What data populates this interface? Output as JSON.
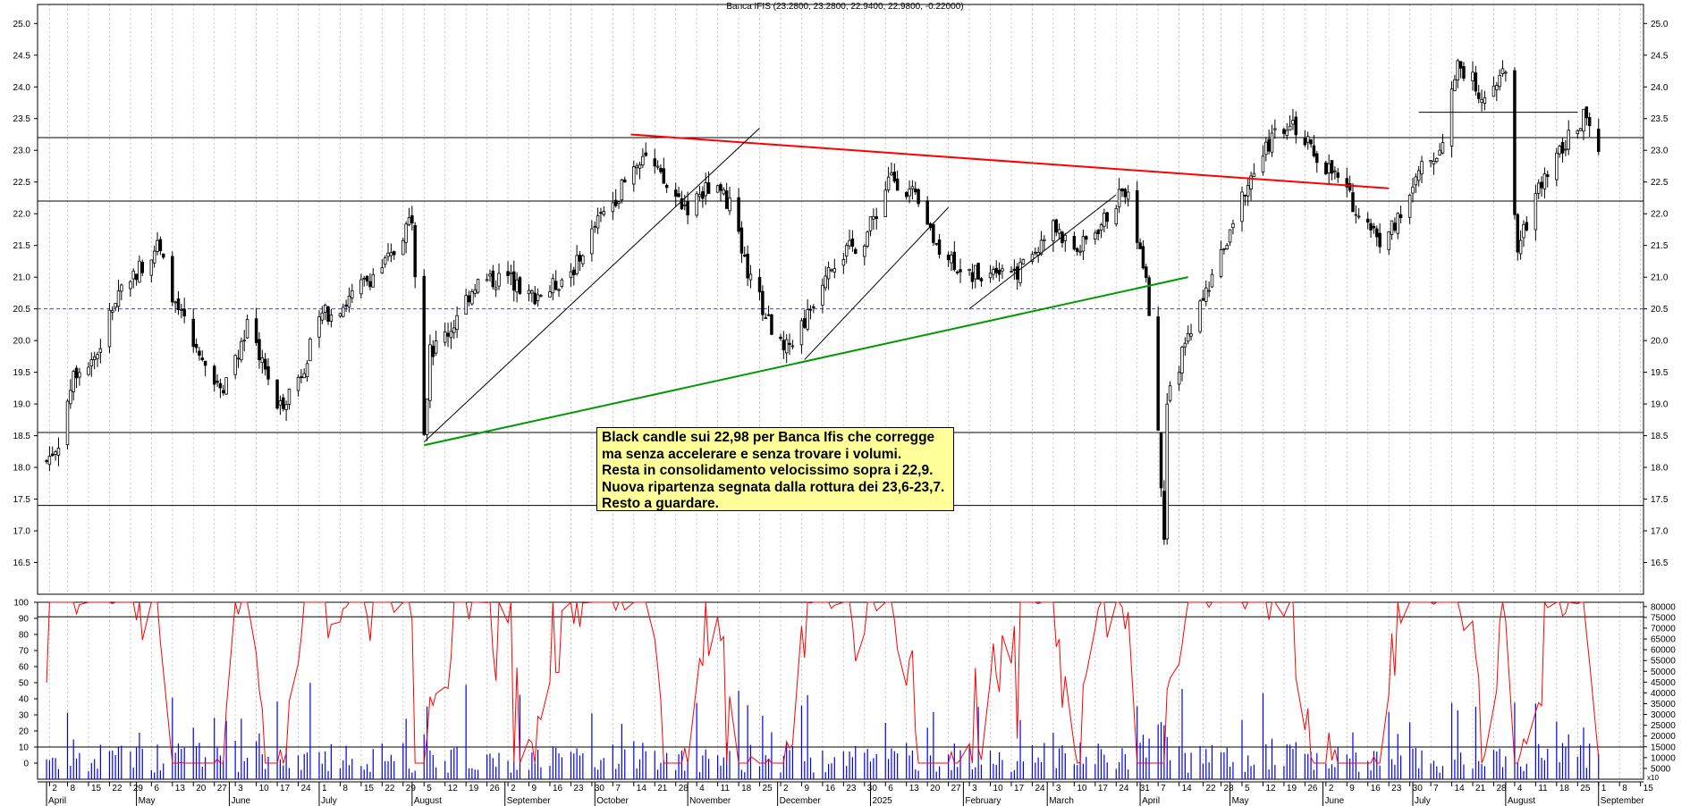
{
  "chart_data": {
    "type": "candlestick",
    "title": "Banca IFIS (23.2800, 23.2800, 22.9400, 22.9800, -0.22000)",
    "price_axis": {
      "ylim": [
        16.0,
        25.3
      ],
      "ticks": [
        "25.0",
        "24.5",
        "24.0",
        "23.5",
        "23.0",
        "22.5",
        "22.0",
        "21.5",
        "21.0",
        "20.5",
        "20.0",
        "19.5",
        "19.0",
        "18.5",
        "18.0",
        "17.5",
        "17.0",
        "16.5"
      ],
      "tick_values": [
        25.0,
        24.5,
        24.0,
        23.5,
        23.0,
        22.5,
        22.0,
        21.5,
        21.0,
        20.5,
        20.0,
        19.5,
        19.0,
        18.5,
        18.0,
        17.5,
        17.0,
        16.5
      ]
    },
    "oscillator_axis": {
      "ylim": [
        -10,
        100
      ],
      "ticks": [
        "100",
        "90",
        "80",
        "70",
        "60",
        "50",
        "40",
        "30",
        "20",
        "10",
        "0"
      ],
      "tick_values": [
        100,
        90,
        80,
        70,
        60,
        50,
        40,
        30,
        20,
        10,
        0
      ]
    },
    "volume_axis": {
      "ylim": [
        0,
        82000
      ],
      "ticks": [
        "80000",
        "75000",
        "70000",
        "65000",
        "60000",
        "55000",
        "50000",
        "45000",
        "40000",
        "35000",
        "30000",
        "25000",
        "20000",
        "15000",
        "10000",
        "5000"
      ],
      "tick_values": [
        80000,
        75000,
        70000,
        65000,
        60000,
        55000,
        50000,
        45000,
        40000,
        35000,
        30000,
        25000,
        20000,
        15000,
        10000,
        5000
      ],
      "unit_label": "x10"
    },
    "x_axis": {
      "start": "2024-03-29",
      "end": "2025-09-16",
      "day_ticks": [
        {
          "date": "2024-04-02",
          "label": "2"
        },
        {
          "date": "2024-04-08",
          "label": "8"
        },
        {
          "date": "2024-04-15",
          "label": "15"
        },
        {
          "date": "2024-04-22",
          "label": "22"
        },
        {
          "date": "2024-04-29",
          "label": "29"
        },
        {
          "date": "2024-05-06",
          "label": "6"
        },
        {
          "date": "2024-05-13",
          "label": "13"
        },
        {
          "date": "2024-05-20",
          "label": "20"
        },
        {
          "date": "2024-05-27",
          "label": "27"
        },
        {
          "date": "2024-06-03",
          "label": "3"
        },
        {
          "date": "2024-06-10",
          "label": "10"
        },
        {
          "date": "2024-06-17",
          "label": "17"
        },
        {
          "date": "2024-06-24",
          "label": "24"
        },
        {
          "date": "2024-07-01",
          "label": "1"
        },
        {
          "date": "2024-07-08",
          "label": "8"
        },
        {
          "date": "2024-07-15",
          "label": "15"
        },
        {
          "date": "2024-07-22",
          "label": "22"
        },
        {
          "date": "2024-07-29",
          "label": "29"
        },
        {
          "date": "2024-08-05",
          "label": "5"
        },
        {
          "date": "2024-08-12",
          "label": "12"
        },
        {
          "date": "2024-08-19",
          "label": "19"
        },
        {
          "date": "2024-08-26",
          "label": "26"
        },
        {
          "date": "2024-09-02",
          "label": "2"
        },
        {
          "date": "2024-09-09",
          "label": "9"
        },
        {
          "date": "2024-09-16",
          "label": "16"
        },
        {
          "date": "2024-09-23",
          "label": "23"
        },
        {
          "date": "2024-09-30",
          "label": "30"
        },
        {
          "date": "2024-10-07",
          "label": "7"
        },
        {
          "date": "2024-10-14",
          "label": "14"
        },
        {
          "date": "2024-10-21",
          "label": "21"
        },
        {
          "date": "2024-10-28",
          "label": "28"
        },
        {
          "date": "2024-11-04",
          "label": "4"
        },
        {
          "date": "2024-11-11",
          "label": "11"
        },
        {
          "date": "2024-11-18",
          "label": "18"
        },
        {
          "date": "2024-11-25",
          "label": "25"
        },
        {
          "date": "2024-12-02",
          "label": "2"
        },
        {
          "date": "2024-12-09",
          "label": "9"
        },
        {
          "date": "2024-12-16",
          "label": "16"
        },
        {
          "date": "2024-12-23",
          "label": "23"
        },
        {
          "date": "2024-12-30",
          "label": "30"
        },
        {
          "date": "2025-01-06",
          "label": "6"
        },
        {
          "date": "2025-01-13",
          "label": "13"
        },
        {
          "date": "2025-01-20",
          "label": "20"
        },
        {
          "date": "2025-01-27",
          "label": "27"
        },
        {
          "date": "2025-02-03",
          "label": "3"
        },
        {
          "date": "2025-02-10",
          "label": "10"
        },
        {
          "date": "2025-02-17",
          "label": "17"
        },
        {
          "date": "2025-02-24",
          "label": "24"
        },
        {
          "date": "2025-03-03",
          "label": "3"
        },
        {
          "date": "2025-03-10",
          "label": "10"
        },
        {
          "date": "2025-03-17",
          "label": "17"
        },
        {
          "date": "2025-03-24",
          "label": "24"
        },
        {
          "date": "2025-03-31",
          "label": "31"
        },
        {
          "date": "2025-04-07",
          "label": "7"
        },
        {
          "date": "2025-04-14",
          "label": "14"
        },
        {
          "date": "2025-04-22",
          "label": "22"
        },
        {
          "date": "2025-04-28",
          "label": "28"
        },
        {
          "date": "2025-05-05",
          "label": "5"
        },
        {
          "date": "2025-05-12",
          "label": "12"
        },
        {
          "date": "2025-05-19",
          "label": "19"
        },
        {
          "date": "2025-05-26",
          "label": "26"
        },
        {
          "date": "2025-06-02",
          "label": "2"
        },
        {
          "date": "2025-06-09",
          "label": "9"
        },
        {
          "date": "2025-06-16",
          "label": "16"
        },
        {
          "date": "2025-06-23",
          "label": "23"
        },
        {
          "date": "2025-06-30",
          "label": "30"
        },
        {
          "date": "2025-07-07",
          "label": "7"
        },
        {
          "date": "2025-07-14",
          "label": "14"
        },
        {
          "date": "2025-07-21",
          "label": "21"
        },
        {
          "date": "2025-07-28",
          "label": "28"
        },
        {
          "date": "2025-08-04",
          "label": "4"
        },
        {
          "date": "2025-08-11",
          "label": "11"
        },
        {
          "date": "2025-08-18",
          "label": "18"
        },
        {
          "date": "2025-08-25",
          "label": "25"
        },
        {
          "date": "2025-09-01",
          "label": "1"
        },
        {
          "date": "2025-09-08",
          "label": "8"
        },
        {
          "date": "2025-09-15",
          "label": "15"
        }
      ],
      "month_labels": [
        {
          "date": "2024-04-01",
          "label": "April"
        },
        {
          "date": "2024-05-01",
          "label": "May"
        },
        {
          "date": "2024-06-01",
          "label": "June"
        },
        {
          "date": "2024-07-01",
          "label": "July"
        },
        {
          "date": "2024-08-01",
          "label": "August"
        },
        {
          "date": "2024-09-01",
          "label": "September"
        },
        {
          "date": "2024-10-01",
          "label": "October"
        },
        {
          "date": "2024-11-01",
          "label": "November"
        },
        {
          "date": "2024-12-01",
          "label": "December"
        },
        {
          "date": "2025-01-01",
          "label": "2025"
        },
        {
          "date": "2025-02-01",
          "label": "February"
        },
        {
          "date": "2025-03-01",
          "label": "March"
        },
        {
          "date": "2025-04-01",
          "label": "April"
        },
        {
          "date": "2025-05-01",
          "label": "May"
        },
        {
          "date": "2025-06-01",
          "label": "June"
        },
        {
          "date": "2025-07-01",
          "label": "July"
        },
        {
          "date": "2025-08-01",
          "label": "August"
        },
        {
          "date": "2025-09-01",
          "label": "September"
        }
      ]
    },
    "price_series_keypoints": [
      {
        "date": "2024-04-01",
        "close": 18.1
      },
      {
        "date": "2024-04-05",
        "close": 18.4
      },
      {
        "date": "2024-04-10",
        "close": 19.5
      },
      {
        "date": "2024-04-18",
        "close": 19.8
      },
      {
        "date": "2024-04-25",
        "close": 20.8
      },
      {
        "date": "2024-05-03",
        "close": 21.2
      },
      {
        "date": "2024-05-08",
        "close": 21.5
      },
      {
        "date": "2024-05-14",
        "close": 20.6
      },
      {
        "date": "2024-05-22",
        "close": 19.7
      },
      {
        "date": "2024-05-30",
        "close": 19.3
      },
      {
        "date": "2024-06-07",
        "close": 20.2
      },
      {
        "date": "2024-06-13",
        "close": 19.6
      },
      {
        "date": "2024-06-17",
        "close": 18.9
      },
      {
        "date": "2024-06-25",
        "close": 19.5
      },
      {
        "date": "2024-07-02",
        "close": 20.4
      },
      {
        "date": "2024-07-10",
        "close": 20.6
      },
      {
        "date": "2024-07-18",
        "close": 21.0
      },
      {
        "date": "2024-07-25",
        "close": 21.3
      },
      {
        "date": "2024-08-01",
        "close": 22.0
      },
      {
        "date": "2024-08-05",
        "close": 18.6
      },
      {
        "date": "2024-08-07",
        "close": 19.8
      },
      {
        "date": "2024-08-14",
        "close": 20.2
      },
      {
        "date": "2024-08-22",
        "close": 20.9
      },
      {
        "date": "2024-09-02",
        "close": 21.0
      },
      {
        "date": "2024-09-09",
        "close": 20.7
      },
      {
        "date": "2024-09-16",
        "close": 20.8
      },
      {
        "date": "2024-09-25",
        "close": 21.2
      },
      {
        "date": "2024-10-01",
        "close": 21.8
      },
      {
        "date": "2024-10-10",
        "close": 22.4
      },
      {
        "date": "2024-10-17",
        "close": 23.0
      },
      {
        "date": "2024-10-25",
        "close": 22.4
      },
      {
        "date": "2024-11-01",
        "close": 22.1
      },
      {
        "date": "2024-11-08",
        "close": 22.4
      },
      {
        "date": "2024-11-15",
        "close": 22.2
      },
      {
        "date": "2024-11-20",
        "close": 21.2
      },
      {
        "date": "2024-11-27",
        "close": 20.4
      },
      {
        "date": "2024-12-03",
        "close": 19.8
      },
      {
        "date": "2024-12-11",
        "close": 20.4
      },
      {
        "date": "2024-12-18",
        "close": 21.2
      },
      {
        "date": "2024-12-30",
        "close": 21.6
      },
      {
        "date": "2025-01-08",
        "close": 22.6
      },
      {
        "date": "2025-01-15",
        "close": 22.3
      },
      {
        "date": "2025-01-22",
        "close": 21.6
      },
      {
        "date": "2025-02-03",
        "close": 21.0
      },
      {
        "date": "2025-02-12",
        "close": 21.2
      },
      {
        "date": "2025-02-20",
        "close": 21.1
      },
      {
        "date": "2025-03-03",
        "close": 21.8
      },
      {
        "date": "2025-03-11",
        "close": 21.4
      },
      {
        "date": "2025-03-20",
        "close": 21.9
      },
      {
        "date": "2025-03-27",
        "close": 22.4
      },
      {
        "date": "2025-04-03",
        "close": 21.1
      },
      {
        "date": "2025-04-07",
        "close": 18.5
      },
      {
        "date": "2025-04-09",
        "close": 17.0
      },
      {
        "date": "2025-04-10",
        "close": 19.0
      },
      {
        "date": "2025-04-17",
        "close": 20.1
      },
      {
        "date": "2025-04-28",
        "close": 21.3
      },
      {
        "date": "2025-05-06",
        "close": 22.4
      },
      {
        "date": "2025-05-14",
        "close": 23.1
      },
      {
        "date": "2025-05-21",
        "close": 23.5
      },
      {
        "date": "2025-05-28",
        "close": 23.0
      },
      {
        "date": "2025-06-05",
        "close": 22.6
      },
      {
        "date": "2025-06-12",
        "close": 22.1
      },
      {
        "date": "2025-06-20",
        "close": 21.6
      },
      {
        "date": "2025-06-27",
        "close": 22.0
      },
      {
        "date": "2025-07-04",
        "close": 22.7
      },
      {
        "date": "2025-07-10",
        "close": 23.0
      },
      {
        "date": "2025-07-16",
        "close": 24.4
      },
      {
        "date": "2025-07-24",
        "close": 23.9
      },
      {
        "date": "2025-08-01",
        "close": 24.2
      },
      {
        "date": "2025-08-05",
        "close": 21.4
      },
      {
        "date": "2025-08-12",
        "close": 22.4
      },
      {
        "date": "2025-08-20",
        "close": 23.1
      },
      {
        "date": "2025-08-27",
        "close": 23.5
      },
      {
        "date": "2025-09-01",
        "close": 22.98
      }
    ],
    "horizontal_levels": [
      {
        "value": 23.2,
        "style": "solid",
        "color": "#000000"
      },
      {
        "value": 22.2,
        "style": "solid",
        "color": "#000000"
      },
      {
        "value": 20.5,
        "style": "dashed",
        "color": "#4444cc"
      },
      {
        "value": 18.55,
        "style": "solid",
        "color": "#000000"
      },
      {
        "value": 17.4,
        "style": "solid",
        "color": "#000000"
      }
    ],
    "trendlines": [
      {
        "name": "red-resistance",
        "color": "#ff0000",
        "points": [
          {
            "date": "2024-10-13",
            "value": 23.25
          },
          {
            "date": "2025-06-23",
            "value": 22.4
          }
        ]
      },
      {
        "name": "green-support",
        "color": "#009900",
        "points": [
          {
            "date": "2024-08-05",
            "value": 18.35
          },
          {
            "date": "2025-04-17",
            "value": 21.0
          }
        ]
      },
      {
        "name": "thin-1",
        "color": "#000000",
        "points": [
          {
            "date": "2024-08-05",
            "value": 18.4
          },
          {
            "date": "2024-11-25",
            "value": 23.35
          }
        ]
      },
      {
        "name": "thin-2",
        "color": "#000000",
        "points": [
          {
            "date": "2024-12-10",
            "value": 19.7
          },
          {
            "date": "2025-01-27",
            "value": 22.1
          }
        ]
      },
      {
        "name": "thin-3",
        "color": "#000000",
        "points": [
          {
            "date": "2025-02-03",
            "value": 20.5
          },
          {
            "date": "2025-03-24",
            "value": 22.3
          }
        ]
      },
      {
        "name": "thin-4",
        "color": "#000000",
        "points": [
          {
            "date": "2025-07-03",
            "value": 23.6
          },
          {
            "date": "2025-08-25",
            "value": 23.6
          }
        ]
      }
    ],
    "oscillator_levels": [
      91,
      10
    ],
    "oscillator_color": "#ff0000",
    "volume_color": "#0000ff",
    "annotation": {
      "lines": [
        "Black candle sui 22,98 per Banca Ifis che corregge",
        "ma senza accelerare e senza trovare i volumi.",
        "Resta in consolidamento velocissimo sopra i 22,9.",
        "Nuova ripartenza segnata dalla rottura dei 23,6-23,7.",
        "Resto a guardare."
      ]
    }
  }
}
